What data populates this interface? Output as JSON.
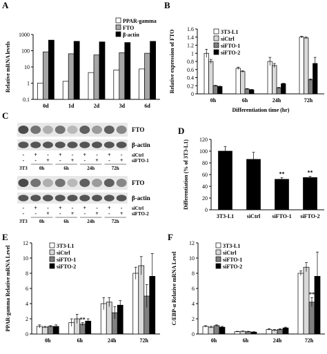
{
  "panel_labels": {
    "A": "A",
    "B": "B",
    "C": "C",
    "D": "D",
    "E": "E",
    "F": "F"
  },
  "chart_data": [
    {
      "id": "A",
      "type": "bar",
      "title": "",
      "ylabel": "Relative mRNA levels",
      "xlabel": "",
      "scale": "log",
      "ylim": [
        0.1,
        1000
      ],
      "yticks": [
        "0.1",
        "1",
        "10",
        "100",
        "1000"
      ],
      "categories": [
        "0d",
        "1d",
        "2d",
        "3d",
        "6d"
      ],
      "legend_placement": "top-right",
      "series": [
        {
          "name": "PPAR-gamma",
          "color": "#ffffff",
          "values": [
            1,
            1.3,
            4.5,
            6.5,
            7.5
          ]
        },
        {
          "name": "FTO",
          "color": "#a6a6a6",
          "values": [
            85,
            65,
            55,
            75,
            70
          ]
        },
        {
          "name": "β-actin",
          "color": "#000000",
          "values": [
            450,
            380,
            350,
            320,
            380
          ]
        }
      ]
    },
    {
      "id": "B",
      "type": "bar",
      "title": "",
      "ylabel": "Relative expression of FTO",
      "xlabel": "Differentiation time (hr)",
      "ylim": [
        0,
        1.6
      ],
      "yticks": [
        "0",
        "0.2",
        "0.4",
        "0.6",
        "0.8",
        "1",
        "1.2",
        "1.4",
        "1.6"
      ],
      "categories": [
        "0h",
        "6h",
        "24h",
        "72h"
      ],
      "legend_placement": "top-left",
      "series": [
        {
          "name": "3T3-L1",
          "color": "#ffffff",
          "values": [
            1.0,
            0.63,
            0.8,
            1.4
          ],
          "err": [
            0.1,
            0.03,
            0.1,
            0.02
          ]
        },
        {
          "name": "siCtrl",
          "color": "#d9d9d9",
          "values": [
            0.8,
            0.55,
            0.7,
            1.38
          ],
          "err": [
            0.05,
            0.02,
            0.05,
            0.02
          ]
        },
        {
          "name": "siFTO-1",
          "color": "#808080",
          "values": [
            0.2,
            0.12,
            0.15,
            0.35
          ],
          "err": [
            0.01,
            0.01,
            0.01,
            0.02
          ]
        },
        {
          "name": "siFTO-2",
          "color": "#000000",
          "values": [
            0.18,
            0.1,
            0.25,
            0.75
          ],
          "err": [
            0.01,
            0.01,
            0.01,
            0.15
          ]
        }
      ]
    },
    {
      "id": "D",
      "type": "bar",
      "title": "",
      "ylabel": "Differentiation (% of 3T3-L1)",
      "xlabel": "",
      "ylim": [
        0,
        120
      ],
      "yticks": [
        "0",
        "20",
        "40",
        "60",
        "80",
        "100",
        "120"
      ],
      "categories": [
        "3T3-L1",
        "siCtrl",
        "siFTO-1",
        "siFTO-2"
      ],
      "values": [
        100,
        86,
        52,
        55
      ],
      "err": [
        8,
        12,
        3,
        2
      ],
      "annotations": [
        "",
        "",
        "**",
        "**"
      ]
    },
    {
      "id": "E",
      "type": "bar",
      "title": "",
      "ylabel": "PPAR-gamma Relative mRNA Level",
      "xlabel": "",
      "ylim": [
        0,
        12
      ],
      "yticks": [
        "0",
        "2",
        "4",
        "6",
        "8",
        "10",
        "12"
      ],
      "categories": [
        "0h",
        "6h",
        "24h",
        "72h"
      ],
      "legend_placement": "top-left",
      "annotations": [
        "",
        "**",
        "",
        ""
      ],
      "series": [
        {
          "name": "3T3-L1",
          "color": "#ffffff",
          "values": [
            1.0,
            1.5,
            4.0,
            8.0
          ],
          "err": [
            0.2,
            0.5,
            0.8,
            0.8
          ]
        },
        {
          "name": "siCtrl",
          "color": "#d9d9d9",
          "values": [
            0.9,
            2.0,
            4.2,
            9.0
          ],
          "err": [
            0.1,
            0.6,
            0.6,
            1.2
          ]
        },
        {
          "name": "siFTO-1",
          "color": "#808080",
          "values": [
            1.0,
            1.3,
            2.8,
            5.0
          ],
          "err": [
            0.1,
            0.2,
            0.8,
            1.5
          ]
        },
        {
          "name": "siFTO-2",
          "color": "#000000",
          "values": [
            1.0,
            1.7,
            3.8,
            7.6
          ],
          "err": [
            0.2,
            0.3,
            0.6,
            3.0
          ]
        }
      ]
    },
    {
      "id": "F",
      "type": "bar",
      "title": "",
      "ylabel": "C/EBP-α Relative mRNA Level",
      "xlabel": "",
      "ylim": [
        0,
        12
      ],
      "yticks": [
        "0",
        "2",
        "4",
        "6",
        "8",
        "10",
        "12"
      ],
      "categories": [
        "0h",
        "6h",
        "24h",
        "72h"
      ],
      "legend_placement": "top-left",
      "annotations": [
        "",
        "",
        "",
        "**"
      ],
      "series": [
        {
          "name": "3T3-L1",
          "color": "#ffffff",
          "values": [
            1.0,
            0.3,
            0.6,
            8.0
          ],
          "err": [
            0.1,
            0.05,
            0.1,
            0.3
          ]
        },
        {
          "name": "siCtrl",
          "color": "#d9d9d9",
          "values": [
            0.9,
            0.35,
            0.5,
            8.8
          ],
          "err": [
            0.1,
            0.05,
            0.1,
            0.6
          ]
        },
        {
          "name": "siFTO-1",
          "color": "#808080",
          "values": [
            1.1,
            0.3,
            0.6,
            4.2
          ],
          "err": [
            0.1,
            0.05,
            0.1,
            0.6
          ]
        },
        {
          "name": "siFTO-2",
          "color": "#000000",
          "values": [
            0.9,
            0.25,
            0.8,
            7.6
          ],
          "err": [
            0.1,
            0.05,
            0.1,
            3.2
          ]
        }
      ]
    }
  ],
  "blot": {
    "blots": [
      {
        "bands": [
          "FTO",
          "β-actin"
        ],
        "siCtrl": "siCtrl",
        "siFTO": "siFTO-1",
        "lanes": [
          "3T3",
          "0h",
          "6h",
          "24h",
          "72h"
        ]
      },
      {
        "bands": [
          "FTO",
          "β-actin"
        ],
        "siCtrl": "siCtrl",
        "siFTO": "siFTO-2",
        "lanes": [
          "3T3",
          "0h",
          "6h",
          "24h",
          "72h"
        ]
      }
    ],
    "sign_rows": {
      "ctrl": [
        "-",
        "+",
        "-",
        "+",
        "-",
        "+",
        "-",
        "+",
        "-"
      ],
      "fto": [
        "-",
        "-",
        "+",
        "-",
        "+",
        "-",
        "+",
        "-",
        "+"
      ]
    }
  }
}
